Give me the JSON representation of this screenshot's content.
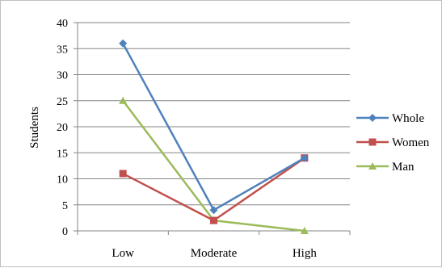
{
  "chart_data": {
    "type": "line",
    "title": "",
    "xlabel": "",
    "ylabel": "Students",
    "categories": [
      "Low",
      "Moderate",
      "High"
    ],
    "ylim": [
      0,
      40
    ],
    "yticks": [
      0,
      5,
      10,
      15,
      20,
      25,
      30,
      35,
      40
    ],
    "grid": true,
    "legend_position": "right",
    "series": [
      {
        "name": "Whole",
        "values": [
          36,
          4,
          14
        ],
        "color": "#4f81bd",
        "marker": "diamond"
      },
      {
        "name": "Women",
        "values": [
          11,
          2,
          14
        ],
        "color": "#c0504d",
        "marker": "square"
      },
      {
        "name": "Man",
        "values": [
          25,
          2,
          0
        ],
        "color": "#9bbb59",
        "marker": "triangle"
      }
    ]
  }
}
